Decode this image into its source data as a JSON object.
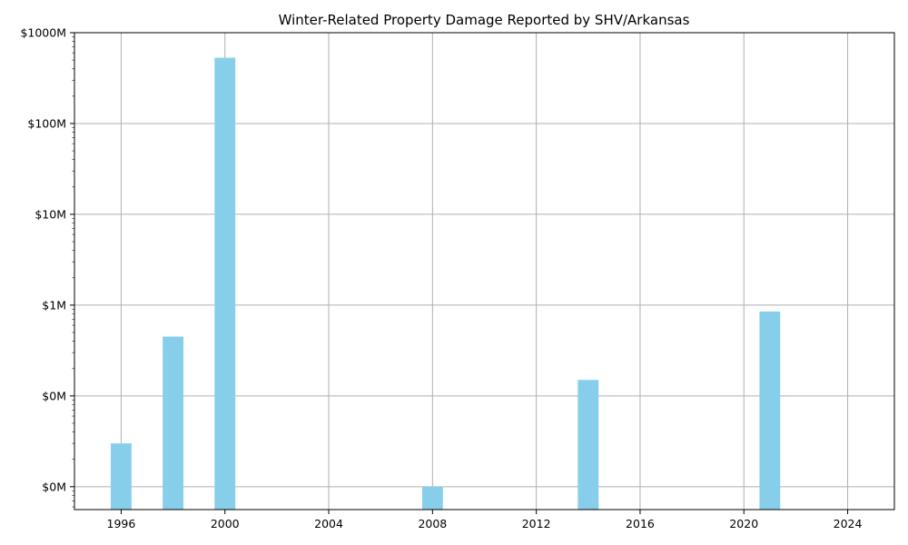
{
  "chart_data": {
    "type": "bar",
    "title": "Winter-Related Property Damage Reported by SHV/Arkansas",
    "xlabel": "",
    "ylabel": "",
    "x_scale": "linear",
    "y_scale": "log",
    "xlim": [
      1994.2,
      2025.8
    ],
    "ylim": [
      5600,
      1000000000
    ],
    "x_ticks": [
      1996,
      2000,
      2004,
      2008,
      2012,
      2016,
      2020,
      2024
    ],
    "y_ticks": [
      {
        "value": 10000,
        "label": "$0M"
      },
      {
        "value": 100000,
        "label": "$0M"
      },
      {
        "value": 1000000,
        "label": "$1M"
      },
      {
        "value": 10000000,
        "label": "$10M"
      },
      {
        "value": 100000000,
        "label": "$100M"
      },
      {
        "value": 1000000000,
        "label": "$1000M"
      }
    ],
    "bar_width_years": 0.8,
    "bar_color": "#87CEEB",
    "grid": true,
    "series": [
      {
        "x": [
          1996,
          1998,
          2000,
          2008,
          2014,
          2021
        ],
        "values": [
          30000,
          450000,
          530000000,
          10000,
          150000,
          850000
        ]
      }
    ]
  }
}
